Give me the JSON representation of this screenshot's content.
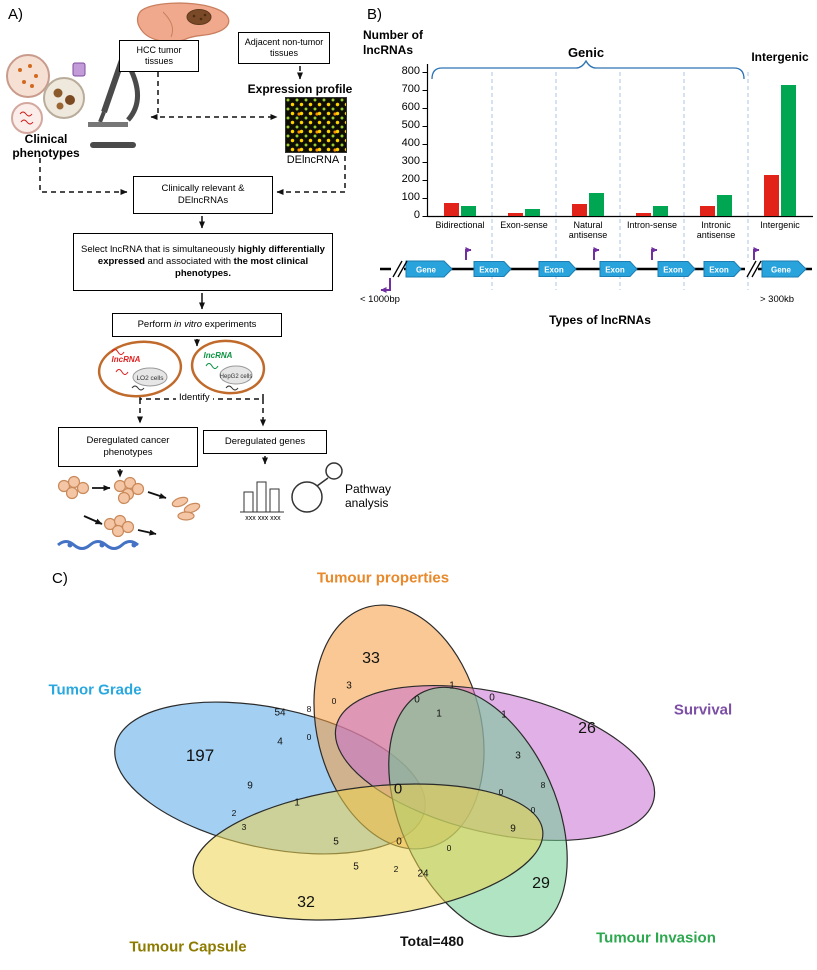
{
  "panels": {
    "a_label": "A)",
    "b_label": "B)",
    "c_label": "C)"
  },
  "panel_a": {
    "hcc_box": "HCC tumor tissues",
    "adjacent_box": "Adjacent non-tumor tissues",
    "expression_profile_label": "Expression profile",
    "delncrna_label": "DElncRNA",
    "clinical_phenotypes_label": "Clinical phenotypes",
    "clinically_relevant_box": "Clinically relevant & DElncRNAs",
    "select_box": {
      "text1": "Select lncRNA that is simultaneously ",
      "bold1": "highly differentially expressed",
      "text2": " and associated with ",
      "bold2": "the most clinical phenotypes."
    },
    "perform_box": {
      "text1": "Perform ",
      "italic": "in vitro",
      "text2": " experiments"
    },
    "lo2_cell": {
      "lncrna": "lncRNA",
      "name": "LO2 cells"
    },
    "hepg2_cell": {
      "lncrna": "lncRNA",
      "name": "HepG2 cells"
    },
    "identify_label": "Identify",
    "deregulated_phenotypes_box": "Deregulated cancer phenotypes",
    "deregulated_genes_box": "Deregulated genes",
    "chart_xxx_label": "xxx xxx xxx",
    "pathway_analysis_label": "Pathway analysis"
  },
  "panel_b": {
    "y_axis_title_line1": "Number of",
    "y_axis_title_line2": "lncRNAs",
    "genic_label": "Genic",
    "intergenic_label": "Intergenic",
    "x_axis_title": "Types of lncRNAs",
    "schematic": {
      "gene_label": "Gene",
      "exon_label": "Exon",
      "exon_count": 5,
      "left_distance": "< 1000bp",
      "right_distance": "> 300kb"
    }
  },
  "chart_data": {
    "type": "bar",
    "title": "",
    "categories": [
      "Bidirectional",
      "Exon-sense",
      "Natural antisense",
      "Intron-sense",
      "Intronic antisense",
      "Intergenic"
    ],
    "series": [
      {
        "name": "red",
        "color": "#E2231A",
        "values": [
          75,
          15,
          65,
          15,
          55,
          230
        ]
      },
      {
        "name": "green",
        "color": "#00A651",
        "values": [
          55,
          40,
          130,
          55,
          115,
          730
        ]
      }
    ],
    "xlabel": "Types of lncRNAs",
    "ylabel": "Number of lncRNAs",
    "ylim": [
      0,
      800
    ],
    "yticks": [
      0,
      100,
      200,
      300,
      400,
      500,
      600,
      700,
      800
    ],
    "group_headers": [
      "Genic",
      "Intergenic"
    ],
    "grid": false,
    "legend_position": "none"
  },
  "panel_c": {
    "sets": [
      {
        "name": "Tumour properties",
        "fill": "#F59B3C",
        "label_color": "#E8892B",
        "count": "33"
      },
      {
        "name": "Tumor Grade",
        "fill": "#55A8E8",
        "label_color": "#29A8E0",
        "count": "197"
      },
      {
        "name": "Survival",
        "fill": "#C86FD1",
        "label_color": "#7C4EA5",
        "count": "26"
      },
      {
        "name": "Tumour Capsule",
        "fill": "#EDD34E",
        "label_color": "#8D7B00",
        "count": "32"
      },
      {
        "name": "Tumour Invasion",
        "fill": "#6FCE8F",
        "label_color": "#2EA84F",
        "count": "29"
      }
    ],
    "center_value": "0",
    "total_label": "Total=480",
    "small_regions": [
      "3",
      "0",
      "1",
      "0",
      "54",
      "8",
      "0",
      "1",
      "1",
      "4",
      "0",
      "3",
      "9",
      "8",
      "0",
      "1",
      "2",
      "3",
      "0",
      "9",
      "5",
      "0",
      "0",
      "5",
      "2",
      "24"
    ]
  }
}
